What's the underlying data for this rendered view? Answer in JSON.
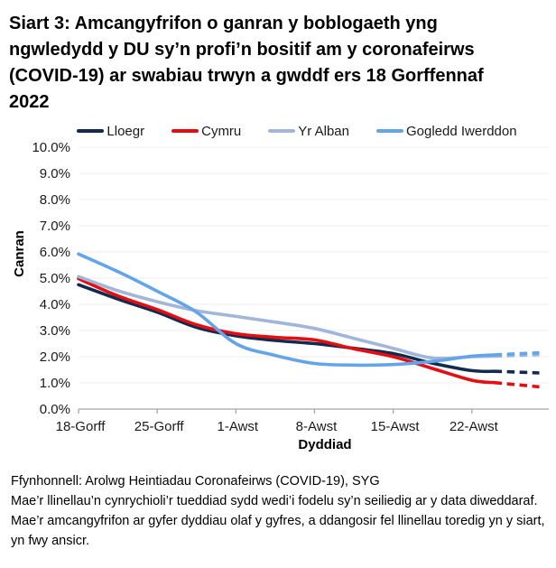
{
  "title": "Siart 3: Amcangyfrifon o ganran y boblogaeth yng ngwledydd y DU sy’n profi’n bositif am y coronafeirws (COVID-19) ar swabiau trwyn a gwddf ers 18 Gorffennaf 2022",
  "footer": {
    "source": "Ffynhonnell: Arolwg Heintiadau Coronafeirws (COVID-19), SYG",
    "note": "Mae’r llinellau’n cynrychioli’r tueddiad sydd wedi’i fodelu sy’n seiliedig ar y data diweddaraf. Mae’r amcangyfrifon ar gyfer dyddiau olaf y gyfres, a ddangosir fel llinellau toredig yn y siart, yn fwy ansicr."
  },
  "chart_data": {
    "type": "line",
    "title": "Siart 3: Amcangyfrifon o ganran y boblogaeth yng ngwledydd y DU sy’n profi’n bositif am y coronafeirws (COVID-19) ar swabiau trwyn a gwddf ers 18 Gorffennaf 2022",
    "xlabel": "Dyddiad",
    "ylabel": "Canran",
    "ylim": [
      0,
      10
    ],
    "grid": "horizontal",
    "legend_position": "top",
    "x_unit_days_from": "18 Gorffennaf 2022",
    "dash_from_day": 37,
    "dash_meaning": "amcangyfrifon ar gyfer dyddiau olaf y gyfres (mwy ansicr)",
    "yticks": [
      {
        "value": 0,
        "label": "0.0%"
      },
      {
        "value": 1,
        "label": "1.0%"
      },
      {
        "value": 2,
        "label": "2.0%"
      },
      {
        "value": 3,
        "label": "3.0%"
      },
      {
        "value": 4,
        "label": "4.0%"
      },
      {
        "value": 5,
        "label": "5.0%"
      },
      {
        "value": 6,
        "label": "6.0%"
      },
      {
        "value": 7,
        "label": "7.0%"
      },
      {
        "value": 8,
        "label": "8.0%"
      },
      {
        "value": 9,
        "label": "9.0%"
      },
      {
        "value": 10,
        "label": "10.0%"
      }
    ],
    "xticks": [
      {
        "day": 0,
        "label": "18-Gorff"
      },
      {
        "day": 7,
        "label": "25-Gorff"
      },
      {
        "day": 14,
        "label": "1-Awst"
      },
      {
        "day": 21,
        "label": "8-Awst"
      },
      {
        "day": 28,
        "label": "15-Awst"
      },
      {
        "day": 35,
        "label": "22-Awst"
      }
    ],
    "sample_days": [
      0,
      3.5,
      7,
      10.5,
      14,
      17.5,
      21,
      24.5,
      28,
      31.5,
      35,
      37,
      38.5,
      41
    ],
    "series": [
      {
        "name": "Lloegr",
        "color": "#132a4f",
        "values": [
          4.75,
          4.2,
          3.7,
          3.12,
          2.8,
          2.62,
          2.5,
          2.32,
          2.12,
          1.75,
          1.47,
          1.44,
          1.42,
          1.38
        ]
      },
      {
        "name": "Cymru",
        "color": "#e60d11",
        "values": [
          4.98,
          4.32,
          3.8,
          3.22,
          2.88,
          2.74,
          2.64,
          2.3,
          2.0,
          1.55,
          1.1,
          1.01,
          0.95,
          0.85
        ]
      },
      {
        "name": "Yr Alban",
        "color": "#a2b6da",
        "values": [
          5.06,
          4.52,
          4.1,
          3.76,
          3.54,
          3.32,
          3.08,
          2.7,
          2.32,
          1.95,
          2.0,
          2.02,
          2.04,
          2.08
        ]
      },
      {
        "name": "Gogledd Iwerddon",
        "color": "#64a4e8",
        "values": [
          5.92,
          5.25,
          4.5,
          3.7,
          2.5,
          2.05,
          1.74,
          1.68,
          1.7,
          1.82,
          2.02,
          2.07,
          2.1,
          2.15
        ]
      }
    ]
  }
}
